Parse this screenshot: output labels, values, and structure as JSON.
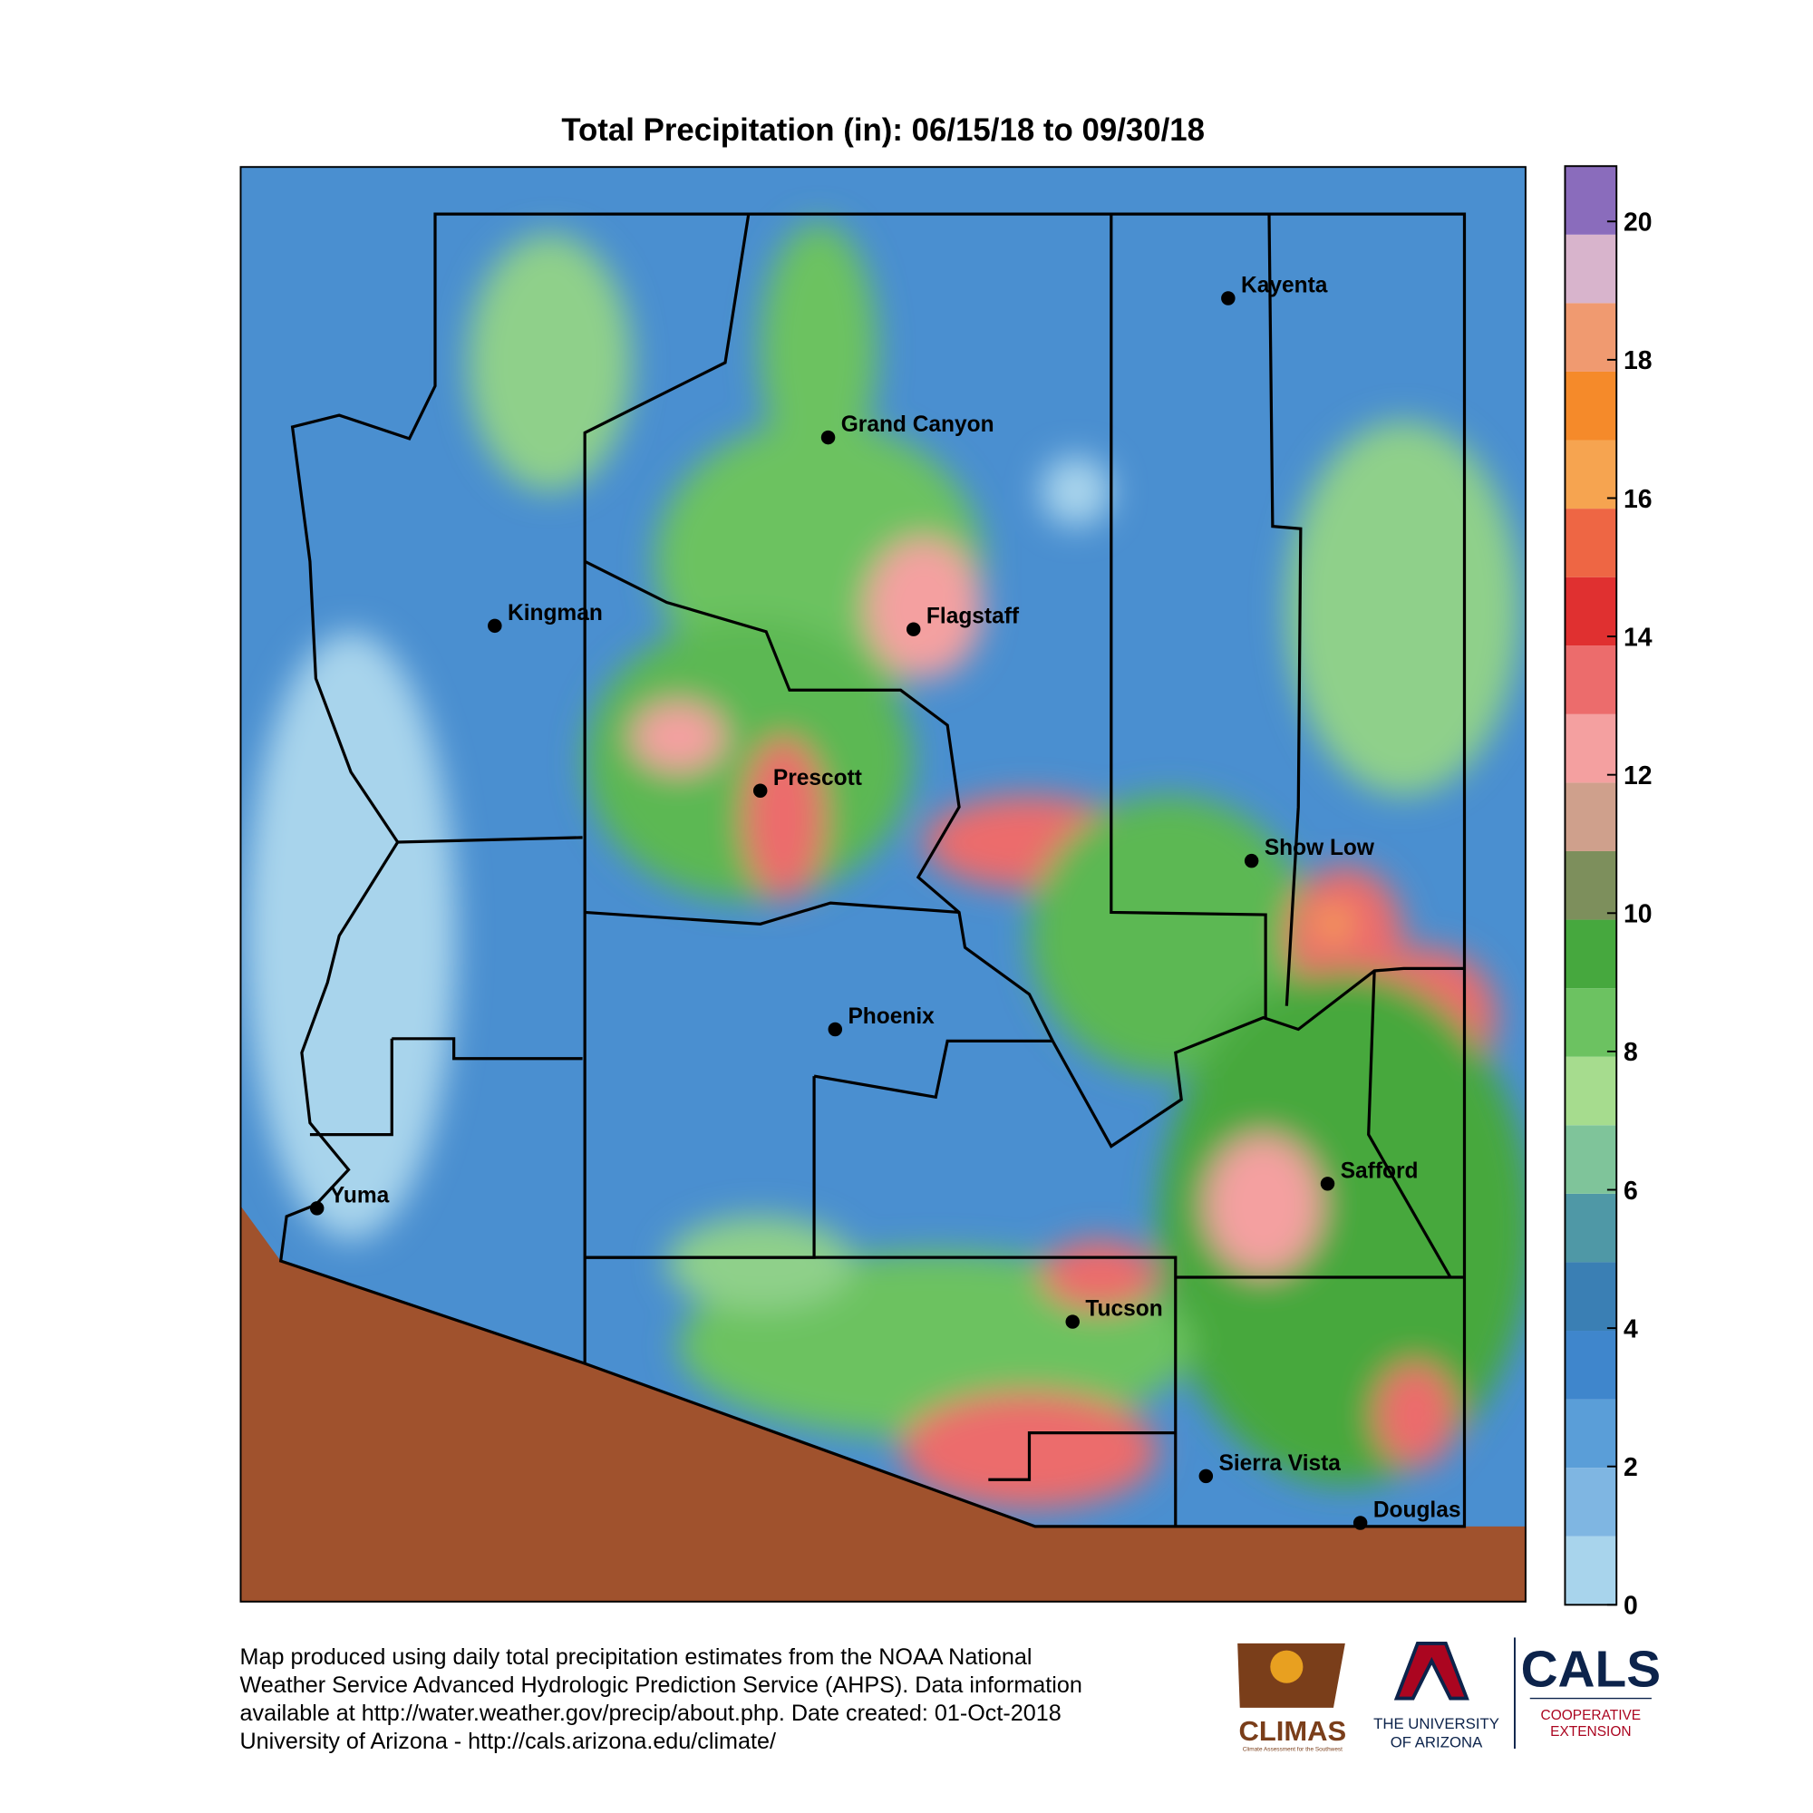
{
  "title": "Total Precipitation (in): 06/15/18 to 09/30/18",
  "cities": [
    "Kayenta",
    "Grand Canyon",
    "Kingman",
    "Flagstaff",
    "Prescott",
    "Show Low",
    "Phoenix",
    "Safford",
    "Yuma",
    "Tucson",
    "Sierra Vista",
    "Douglas"
  ],
  "colorbar": {
    "lim": [
      0,
      20.8
    ],
    "ticks": [
      0,
      2,
      4,
      6,
      8,
      10,
      12,
      14,
      16,
      18,
      20
    ],
    "colors": [
      "#a8d4ec",
      "#7fb6e2",
      "#5a9ed8",
      "#3f86cc",
      "#3a7fb4",
      "#4f98a6",
      "#7fc49a",
      "#a6dc8e",
      "#6cc261",
      "#46a83e",
      "#7d8f5c",
      "#cfa08c",
      "#f4a0a0",
      "#ec6c6c",
      "#e03030",
      "#ee6644",
      "#f6a450",
      "#f58a2a",
      "#f09a70",
      "#d8b4cc",
      "#8a6cbc"
    ]
  },
  "footer": [
    "Map produced using daily total precipitation estimates from the NOAA National",
    "Weather Service Advanced Hydrologic Prediction Service (AHPS). Data information",
    "available at http://water.weather.gov/precip/about.php. Date created: 01-Oct-2018",
    "University of Arizona - http://cals.arizona.edu/climate/"
  ],
  "logos": {
    "climas": "CLIMAS",
    "climas_sub": "Climate Assessment for the Southwest",
    "ua_1": "THE UNIVERSITY",
    "ua_2": "OF ARIZONA",
    "cals": "CALS",
    "cals_1": "COOPERATIVE",
    "cals_2": "EXTENSION"
  }
}
